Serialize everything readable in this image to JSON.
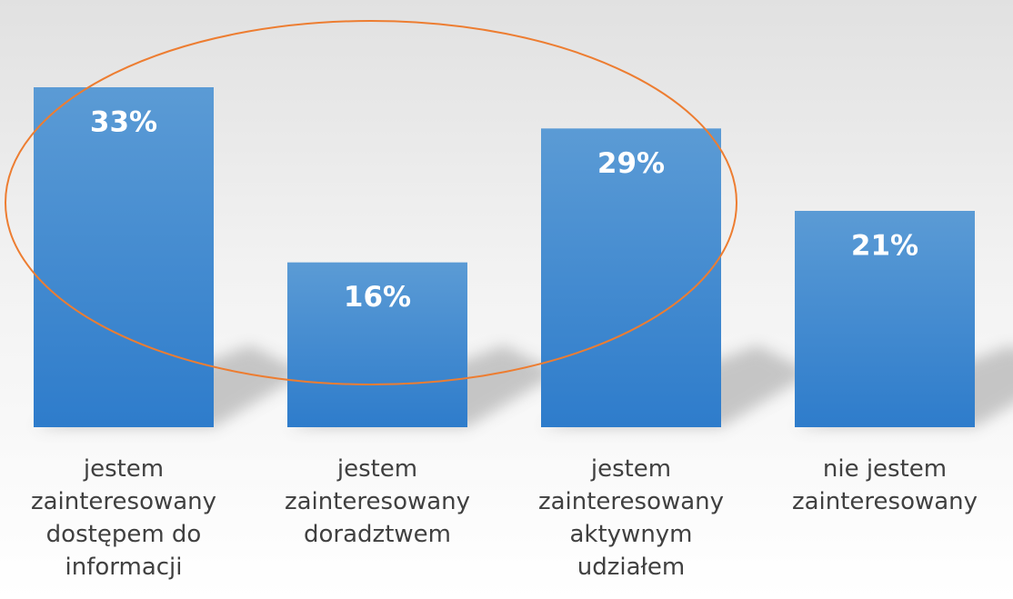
{
  "chart_data": {
    "type": "bar",
    "categories": [
      "jestem\nzainteresowany\ndostępem do\ninformacji",
      "jestem\nzainteresowany\ndoradztwem",
      "jestem\nzainteresowany\naktywnym\nudziałem",
      "nie jestem\nzainteresowany"
    ],
    "values": [
      33,
      16,
      29,
      21
    ],
    "value_labels": [
      "33%",
      "16%",
      "29%",
      "21%"
    ],
    "color": "#4a8fd6"
  }
}
